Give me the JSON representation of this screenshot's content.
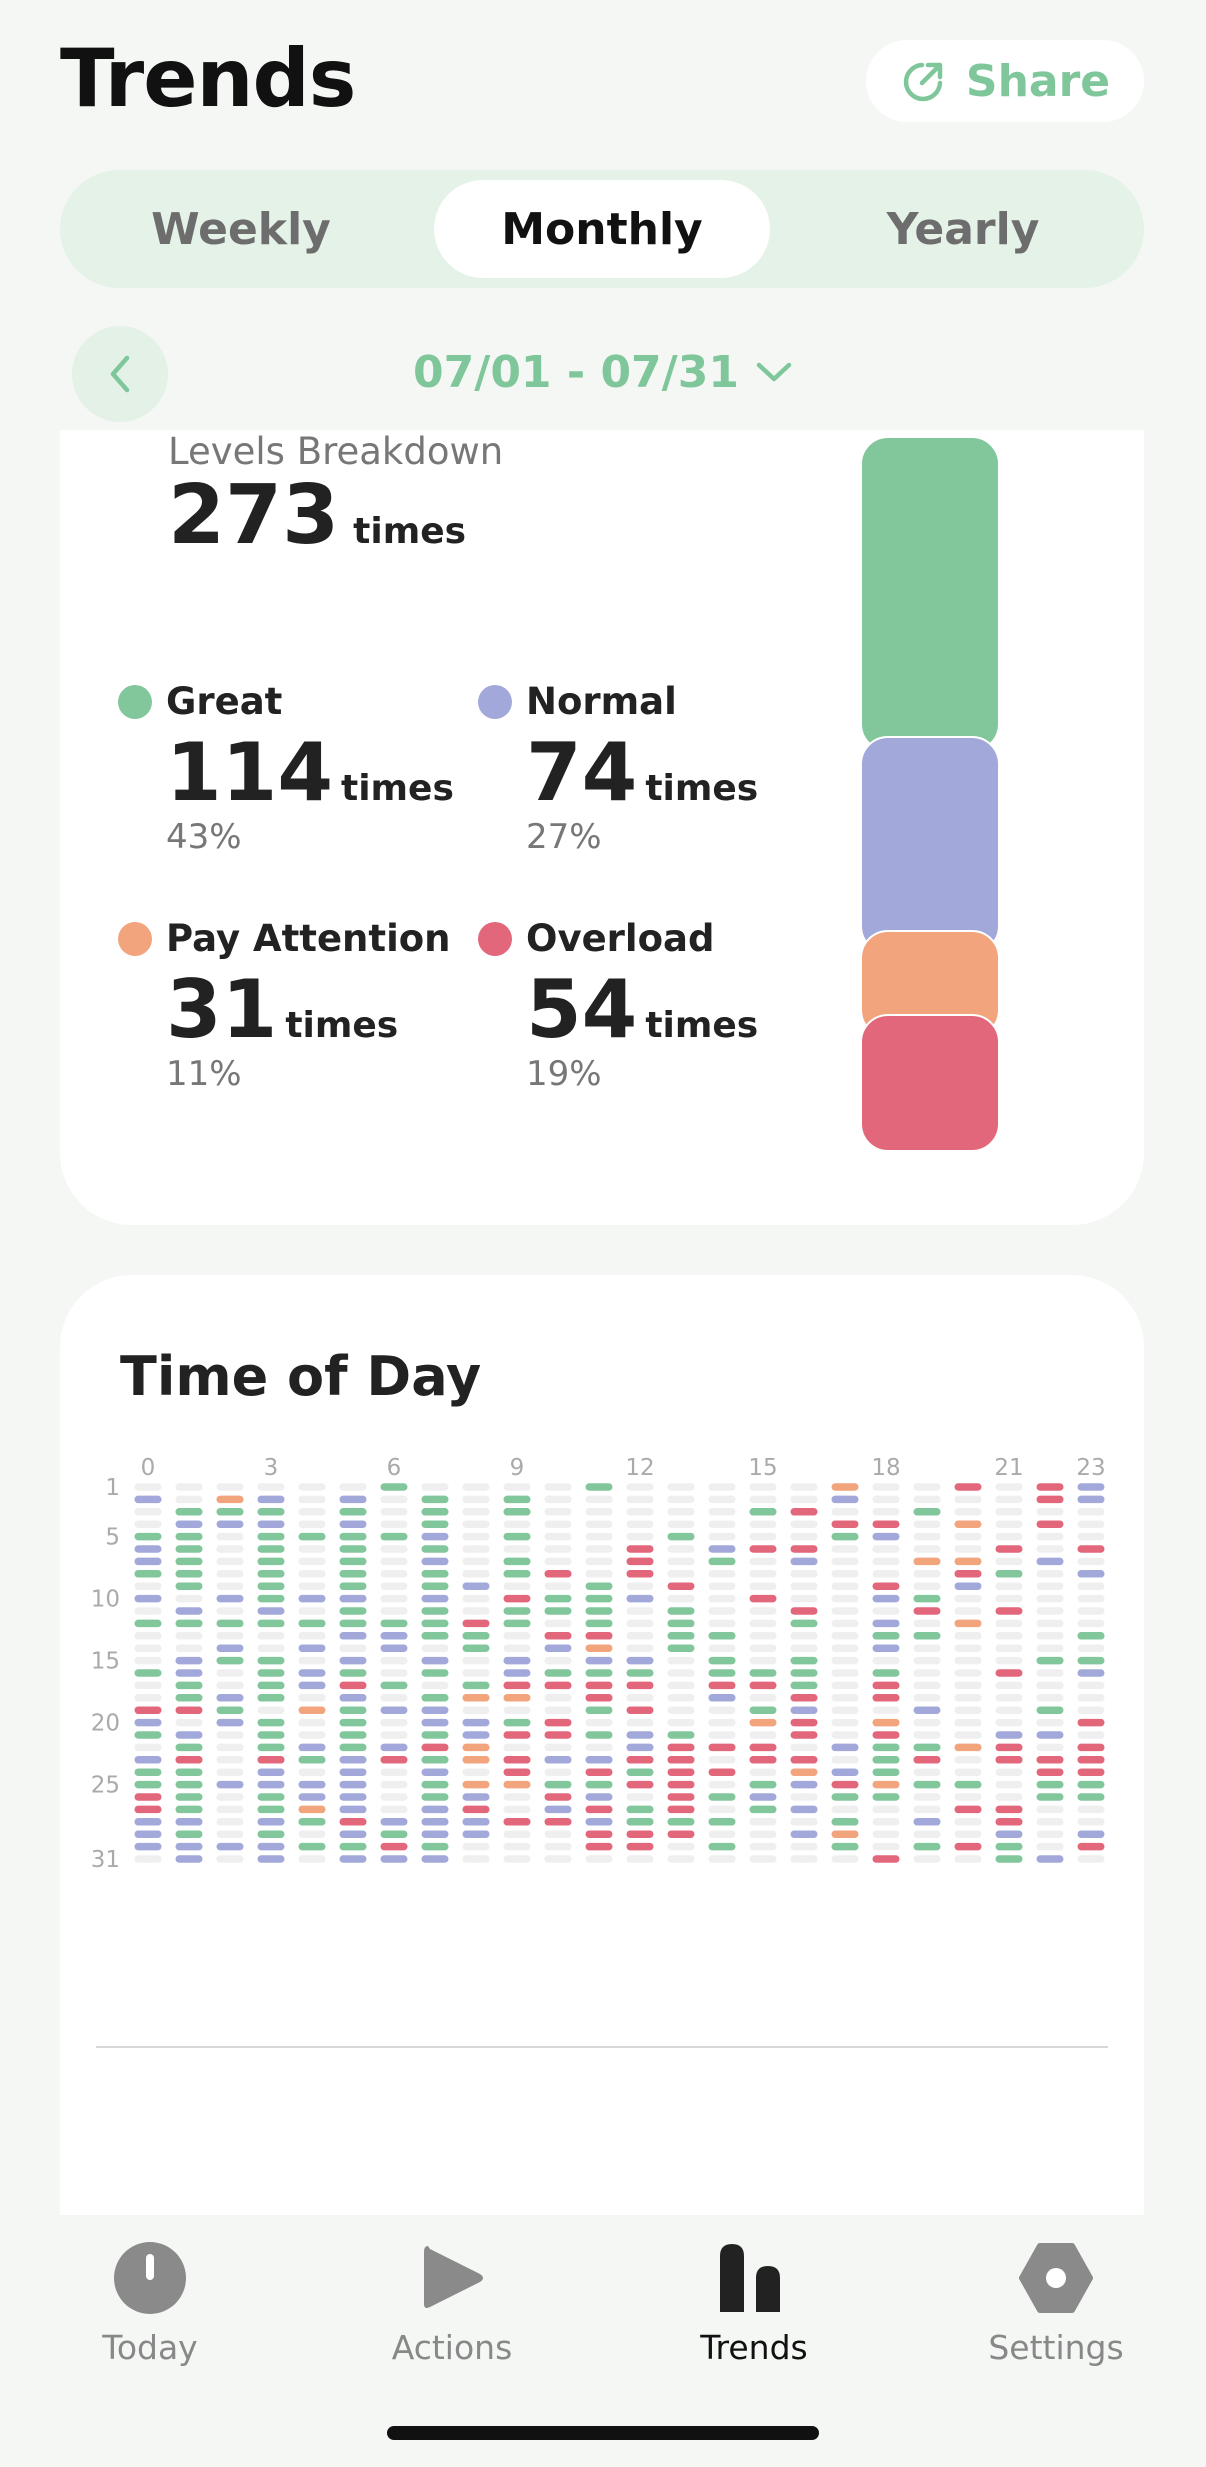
{
  "header": {
    "title": "Trends",
    "share_label": "Share",
    "share_icon": "share-icon"
  },
  "tabs": [
    {
      "label": "Weekly",
      "active": false
    },
    {
      "label": "Monthly",
      "active": true
    },
    {
      "label": "Yearly",
      "active": false
    }
  ],
  "date_range": {
    "label": "07/01 - 07/31",
    "back_icon": "chevron-left-icon",
    "dropdown_icon": "chevron-down-icon"
  },
  "breakdown": {
    "label": "Levels Breakdown",
    "total": "273",
    "unit": "times",
    "levels": [
      {
        "name": "Great",
        "count": "114",
        "unit": "times",
        "percent": "43%",
        "color": "#82c79c"
      },
      {
        "name": "Normal",
        "count": "74",
        "unit": "times",
        "percent": "27%",
        "color": "#a2a9da"
      },
      {
        "name": "Pay Attention",
        "count": "31",
        "unit": "times",
        "percent": "11%",
        "color": "#f2a47c"
      },
      {
        "name": "Overload",
        "count": "54",
        "unit": "times",
        "percent": "19%",
        "color": "#e3677b"
      }
    ]
  },
  "time_of_day": {
    "title": "Time of Day",
    "x_ticks": [
      {
        "hour": 0,
        "label": "0"
      },
      {
        "hour": 3,
        "label": "3"
      },
      {
        "hour": 6,
        "label": "6"
      },
      {
        "hour": 9,
        "label": "9"
      },
      {
        "hour": 12,
        "label": "12"
      },
      {
        "hour": 15,
        "label": "15"
      },
      {
        "hour": 18,
        "label": "18"
      },
      {
        "hour": 21,
        "label": "21"
      },
      {
        "hour": 23,
        "label": "23"
      }
    ],
    "y_ticks": [
      {
        "day": 1,
        "label": "1"
      },
      {
        "day": 5,
        "label": "5"
      },
      {
        "day": 10,
        "label": "10"
      },
      {
        "day": 15,
        "label": "15"
      },
      {
        "day": 20,
        "label": "20"
      },
      {
        "day": 25,
        "label": "25"
      },
      {
        "day": 31,
        "label": "31"
      }
    ],
    "empty_color": "#efefef",
    "level_colors": {
      "G": "#82c79c",
      "N": "#a2a9da",
      "P": "#f2a47c",
      "O": "#e3677b"
    }
  },
  "chart_data": {
    "type": "heatmap",
    "title": "Time of Day",
    "x": "hour of day (0-23)",
    "y": "day of month (1-31)",
    "legend": [
      "Great",
      "Normal",
      "Pay Attention",
      "Overload"
    ],
    "rows": [
      "......G....G.....P..O.ON",
      "N.PN.N.G.G.......N....ON",
      ".GGG.G.G.G.....GO..G....",
      ".NNN.N.G.........OO.P.O.",
      "GG.GGGGN.G...G...GN.....",
      "NG.G.G.G....O.NOO....O.O",
      "NG.G.G.N.G..O.G.N..PP.N.",
      "GG.G.G.G.GO.O.......OG.N",
      ".G.G.G.GN..G.O....O.N...",
      "N.NGNN.N.OGGN..O..NG....",
      ".N.N.G.G.GGG.G..O..O.O..",
      "GGGGGGGGOG.G.G..G.N.P...",
      ".....NNGG.OO.GG...GG...G",
      "..N.N.N.G.NP.G....N.....",
      ".NGG.N.N.N.NN.G.G.....GG",
      "GN.GNG.G.NGGG.GGG.G..O.N",
      ".G.GNOG.GOOOO.OOG.O.....",
      ".GNG.N.GPP.O..N.O.O.....",
      "OOG.PGNN...GO..GN..N..G.",
      "N.NG.G.NNGO....PO.P....O",
      "GN.G.G.GNOOGNG..O.O..NN.",
      ".G.GNGNOP...NOOO.NGGPO.O",
      "NO.OGNOGPONNOO.OO.GO.OOO",
      "GG.N.N.N.O.OGOO.PNG...OO",
      "GGNNNN.GPPGGOO.GNOPGG.GG",
      "OG.GNN.GN.ON.OGN.GG...GG",
      "OG.GPN.NO.NOGO.GN...OO..",
      "NN.NGONNNOONGGG..G.N.O..",
      "NG.G.NGNN..OOO..NP...N.N",
      "NNNNGGOG...OO.G..G.GOG.O",
      ".N.N.NNN..........O..GN."
    ],
    "note_rows": "one string per day (day 1 first); one character per hour 0-23: G=Great, N=Normal, P=Pay Attention, O=Overload, .=none"
  },
  "nav": [
    {
      "label": "Today",
      "icon": "clock-icon",
      "active": false
    },
    {
      "label": "Actions",
      "icon": "play-icon",
      "active": false
    },
    {
      "label": "Trends",
      "icon": "trends-icon",
      "active": true
    },
    {
      "label": "Settings",
      "icon": "gear-icon",
      "active": false
    }
  ]
}
